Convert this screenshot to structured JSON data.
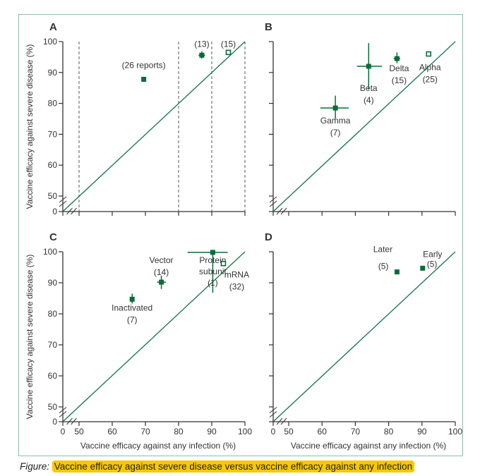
{
  "caption": {
    "lead": "Figure:",
    "text": "Vaccine efficacy against severe disease versus vaccine efficacy against any infection"
  },
  "colors": {
    "marker": "#0b6b3a",
    "identity_line": "#1f7a55",
    "axis": "#333333",
    "dashed": "#555555",
    "frame": "#8fbfa8",
    "highlight": "#f9c800"
  },
  "chart_data": [
    {
      "panel": "A",
      "type": "scatter",
      "xlabel": "",
      "ylabel": "Vaccine efficacy against severe disease (%)",
      "xlim": [
        0,
        100
      ],
      "ylim": [
        0,
        100
      ],
      "x_axis_break": [
        0,
        50
      ],
      "y_axis_break": [
        0,
        50
      ],
      "xticks": [
        0,
        50,
        60,
        70,
        80,
        90,
        100
      ],
      "xtick_labels_shown": false,
      "yticks": [
        0,
        50,
        60,
        70,
        80,
        90,
        100
      ],
      "ytick_labels": [
        "0",
        "50",
        "60",
        "70",
        "80",
        "90",
        "100"
      ],
      "vertical_dashed_lines_x": [
        50,
        80,
        90,
        100
      ],
      "identity_line": true,
      "points": [
        {
          "label": "(26 reports)",
          "x": 69.5,
          "y": 87.8,
          "xerr": [
            68.8,
            70.2
          ],
          "yerr": [
            87.0,
            88.6
          ],
          "hollow": false
        },
        {
          "label": "(13)",
          "x": 87,
          "y": 95.6,
          "xerr": [
            86.0,
            88.0
          ],
          "yerr": [
            94.5,
            96.8
          ],
          "hollow": false
        },
        {
          "label": "(15)",
          "x": 95,
          "y": 96.5,
          "xerr": [
            94.6,
            95.4
          ],
          "yerr": [
            96.0,
            97.0
          ],
          "hollow": true
        }
      ]
    },
    {
      "panel": "B",
      "type": "scatter",
      "xlabel": "",
      "ylabel": "",
      "xlim": [
        0,
        100
      ],
      "ylim": [
        0,
        100
      ],
      "x_axis_break": [
        0,
        50
      ],
      "y_axis_break": [
        0,
        50
      ],
      "xticks": [
        0,
        50,
        60,
        70,
        80,
        90,
        100
      ],
      "xtick_labels_shown": false,
      "yticks": [
        0,
        50,
        60,
        70,
        80,
        90,
        100
      ],
      "ytick_labels_shown": false,
      "identity_line": true,
      "points": [
        {
          "label": "Gamma",
          "count": "(7)",
          "x": 64,
          "y": 78.5,
          "xerr": [
            59.5,
            68
          ],
          "yerr": [
            75,
            82.5
          ],
          "hollow": false
        },
        {
          "label": "Beta",
          "count": "(4)",
          "x": 74,
          "y": 92,
          "xerr": [
            70.5,
            78
          ],
          "yerr": [
            84.5,
            99.5
          ],
          "hollow": false
        },
        {
          "label": "Delta",
          "count": "(15)",
          "x": 82.5,
          "y": 94.5,
          "xerr": [
            81.5,
            83.5
          ],
          "yerr": [
            93,
            96.5
          ],
          "hollow": false
        },
        {
          "label": "Alpha",
          "count": "(25)",
          "x": 92,
          "y": 96,
          "xerr": [
            91.7,
            92.3
          ],
          "yerr": [
            95.7,
            96.3
          ],
          "hollow": true
        }
      ]
    },
    {
      "panel": "C",
      "type": "scatter",
      "xlabel": "Vaccine efficacy against any infection (%)",
      "ylabel": "Vaccine efficacy against severe disease (%)",
      "xlim": [
        0,
        100
      ],
      "ylim": [
        0,
        100
      ],
      "x_axis_break": [
        0,
        50
      ],
      "y_axis_break": [
        0,
        50
      ],
      "xticks": [
        0,
        50,
        60,
        70,
        80,
        90,
        100
      ],
      "xtick_labels": [
        "0",
        "50",
        "60",
        "70",
        "80",
        "90",
        "100"
      ],
      "yticks": [
        0,
        50,
        60,
        70,
        80,
        90,
        100
      ],
      "ytick_labels": [
        "0",
        "50",
        "60",
        "70",
        "80",
        "90",
        "100"
      ],
      "identity_line": true,
      "points": [
        {
          "label": "Inactivated",
          "count": "(7)",
          "x": 66,
          "y": 84.7,
          "xerr": [
            65.3,
            66.7
          ],
          "yerr": [
            83.3,
            86.5
          ],
          "hollow": false
        },
        {
          "label": "Vector",
          "count": "(14)",
          "x": 74.8,
          "y": 90.2,
          "xerr": [
            73.5,
            76.2
          ],
          "yerr": [
            88,
            92.3
          ],
          "hollow": false
        },
        {
          "label": "Protein subunit",
          "count": "(1)",
          "x": 90.3,
          "y": 99.8,
          "xerr": [
            82.7,
            94.8
          ],
          "yerr": [
            86.8,
            99.8
          ],
          "hollow": false
        },
        {
          "label": "mRNA",
          "count": "(32)",
          "x": 93.5,
          "y": 96.2,
          "xerr": [
            93.1,
            93.9
          ],
          "yerr": [
            95.8,
            96.6
          ],
          "hollow": true
        }
      ]
    },
    {
      "panel": "D",
      "type": "scatter",
      "xlabel": "Vaccine efficacy against any infection (%)",
      "ylabel": "",
      "xlim": [
        0,
        100
      ],
      "ylim": [
        0,
        100
      ],
      "x_axis_break": [
        0,
        50
      ],
      "y_axis_break": [
        0,
        50
      ],
      "xticks": [
        0,
        50,
        60,
        70,
        80,
        90,
        100
      ],
      "xtick_labels": [
        "0",
        "50",
        "60",
        "70",
        "80",
        "90",
        "100"
      ],
      "yticks": [
        0,
        50,
        60,
        70,
        80,
        90,
        100
      ],
      "ytick_labels_shown": false,
      "identity_line": true,
      "points": [
        {
          "label": "Later",
          "count": "(5)",
          "x": 82.5,
          "y": 93.5,
          "xerr": [
            82,
            83
          ],
          "yerr": [
            93,
            94
          ],
          "hollow": false
        },
        {
          "label": "Early",
          "count": "(5)",
          "x": 90.2,
          "y": 94.7,
          "xerr": [
            89.9,
            90.5
          ],
          "yerr": [
            94.4,
            95
          ],
          "hollow": false
        }
      ]
    }
  ]
}
